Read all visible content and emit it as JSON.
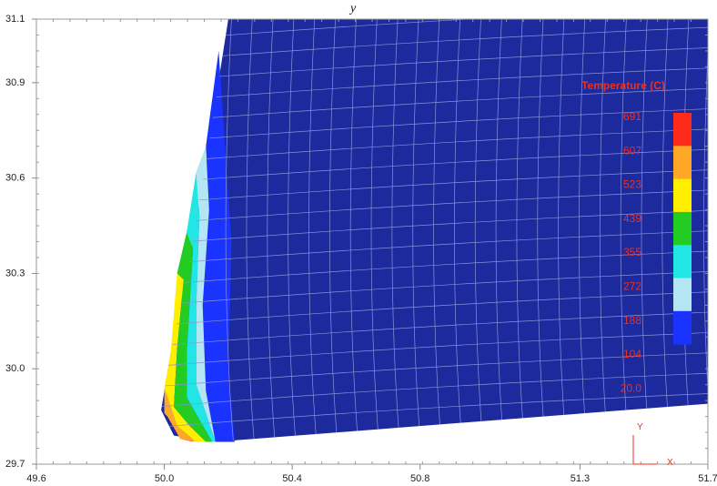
{
  "chart_data": {
    "type": "heatmap",
    "title": "y",
    "legend": {
      "title": "Temperature (C)",
      "placement": "top-right",
      "labels": [
        "691",
        "607",
        "523",
        "439",
        "355",
        "272",
        "188",
        "104",
        "20.0"
      ],
      "colors": [
        "#ff2a1a",
        "#ffa726",
        "#ffee00",
        "#22cc22",
        "#22e5e5",
        "#b3e6f2",
        "#1a33ff"
      ]
    },
    "x_axis": {
      "range": [
        49.6,
        51.7
      ],
      "ticks": [
        "49.6",
        "50.0",
        "50.4",
        "50.8",
        "51.3",
        "51.7"
      ],
      "tick_values": [
        49.6,
        50.0,
        50.4,
        50.8,
        51.3,
        51.7
      ]
    },
    "y_axis": {
      "range": [
        29.7,
        31.1
      ],
      "ticks": [
        "29.7",
        "30.0",
        "30.3",
        "30.6",
        "30.9",
        "31.1"
      ],
      "tick_values": [
        29.7,
        30.0,
        30.3,
        30.6,
        30.9,
        31.1
      ]
    },
    "axis_indicator": {
      "x": "X",
      "y": "Y"
    },
    "body_outline": [
      [
        50.2,
        31.1
      ],
      [
        51.7,
        31.1
      ],
      [
        51.7,
        29.89
      ],
      [
        50.16,
        29.77
      ],
      [
        50.03,
        29.79
      ],
      [
        49.99,
        29.87
      ],
      [
        50.02,
        30.05
      ],
      [
        50.08,
        30.35
      ],
      [
        50.13,
        30.65
      ],
      [
        50.2,
        31.1
      ]
    ],
    "hot_zone_bands": [
      {
        "level": 6,
        "points": [
          [
            50.05,
            29.78
          ],
          [
            50.09,
            29.77
          ],
          [
            50.01,
            29.85
          ]
        ]
      },
      {
        "level": 5,
        "points": [
          [
            50.0,
            29.86
          ],
          [
            50.0,
            29.94
          ],
          [
            50.04,
            29.82
          ],
          [
            50.1,
            29.77
          ],
          [
            50.05,
            29.78
          ],
          [
            50.01,
            29.85
          ]
        ]
      },
      {
        "level": 4,
        "points": [
          [
            50.02,
            30.05
          ],
          [
            50.04,
            30.3
          ],
          [
            50.06,
            30.28
          ],
          [
            50.04,
            30.06
          ],
          [
            50.03,
            29.88
          ],
          [
            50.08,
            29.82
          ],
          [
            50.13,
            29.77
          ],
          [
            50.1,
            29.77
          ],
          [
            50.04,
            29.82
          ],
          [
            50.0,
            29.94
          ]
        ]
      },
      {
        "level": 3,
        "points": [
          [
            50.04,
            30.3
          ],
          [
            50.07,
            30.43
          ],
          [
            50.09,
            30.38
          ],
          [
            50.07,
            30.05
          ],
          [
            50.07,
            29.91
          ],
          [
            50.11,
            29.84
          ],
          [
            50.15,
            29.77
          ],
          [
            50.13,
            29.77
          ],
          [
            50.08,
            29.82
          ],
          [
            50.03,
            29.88
          ],
          [
            50.04,
            30.06
          ],
          [
            50.06,
            30.28
          ]
        ]
      },
      {
        "level": 2,
        "points": [
          [
            50.07,
            30.43
          ],
          [
            50.1,
            30.62
          ],
          [
            50.11,
            30.48
          ],
          [
            50.1,
            30.2
          ],
          [
            50.1,
            29.95
          ],
          [
            50.13,
            29.86
          ],
          [
            50.16,
            29.77
          ],
          [
            50.15,
            29.77
          ],
          [
            50.11,
            29.84
          ],
          [
            50.07,
            29.91
          ],
          [
            50.07,
            30.05
          ],
          [
            50.09,
            30.38
          ]
        ]
      },
      {
        "level": 1,
        "points": [
          [
            50.1,
            30.62
          ],
          [
            50.13,
            30.7
          ],
          [
            50.14,
            30.5
          ],
          [
            50.12,
            30.2
          ],
          [
            50.13,
            29.93
          ],
          [
            50.16,
            29.77
          ],
          [
            50.13,
            29.86
          ],
          [
            50.1,
            29.95
          ],
          [
            50.1,
            30.2
          ],
          [
            50.11,
            30.48
          ]
        ]
      }
    ],
    "warm_zone_band": {
      "level": 0,
      "color": "#1a33ff",
      "points": [
        [
          50.13,
          30.7
        ],
        [
          50.17,
          31.0
        ],
        [
          50.21,
          30.4
        ],
        [
          50.2,
          30.0
        ],
        [
          50.22,
          29.77
        ],
        [
          50.16,
          29.77
        ],
        [
          50.13,
          29.93
        ],
        [
          50.12,
          30.2
        ],
        [
          50.14,
          30.5
        ]
      ]
    },
    "grid": true,
    "colors": {
      "body": "#1c2a9e",
      "mesh": "#8a93d8",
      "plot_frame": "#999999"
    }
  }
}
